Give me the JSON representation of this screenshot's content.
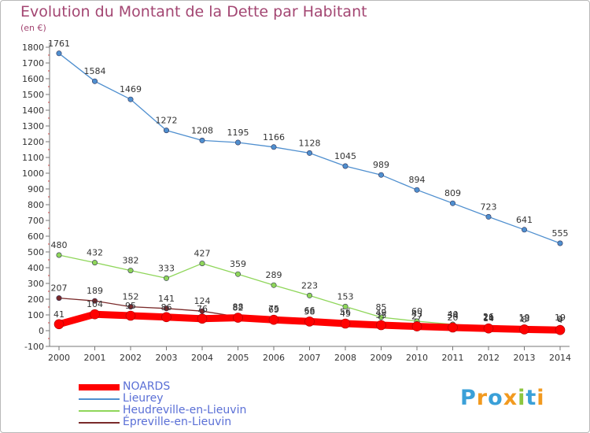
{
  "chart_data": {
    "type": "line",
    "title": "Evolution du Montant de la Dette par Habitant",
    "subtitle": "(en €)",
    "x": [
      "2000",
      "2001",
      "2002",
      "2003",
      "2004",
      "2005",
      "2006",
      "2007",
      "2008",
      "2009",
      "2010",
      "2011",
      "2012",
      "2013",
      "2014"
    ],
    "ylim": [
      -100,
      1800
    ],
    "yticks": [
      -100,
      0,
      100,
      200,
      300,
      400,
      500,
      600,
      700,
      800,
      900,
      1000,
      1100,
      1200,
      1300,
      1400,
      1500,
      1600,
      1700,
      1800
    ],
    "grid": false,
    "legend_placement": "bottom-left",
    "series": [
      {
        "name": "NOARDS",
        "color": "#ff0000",
        "values": [
          41,
          104,
          95,
          86,
          76,
          82,
          69,
          58,
          45,
          35,
          27,
          20,
          14,
          8,
          4
        ],
        "labels": true
      },
      {
        "name": "Lieurey",
        "color": "#4f8fcf",
        "values": [
          1761,
          1584,
          1469,
          1272,
          1208,
          1195,
          1166,
          1128,
          1045,
          989,
          894,
          809,
          723,
          641,
          555
        ],
        "labels": true
      },
      {
        "name": "Heudreville-en-Lieuvin",
        "color": "#8fd65a",
        "values": [
          480,
          432,
          382,
          333,
          427,
          359,
          289,
          223,
          153,
          85,
          60,
          40,
          26,
          19,
          19
        ],
        "labels": true
      },
      {
        "name": "Épreville-en-Lieuvin",
        "color": "#7a2a2a",
        "values": [
          207,
          189,
          152,
          141,
          124,
          88,
          75,
          66,
          56,
          49,
          43,
          34,
          21,
          13,
          9
        ],
        "labels": true
      }
    ]
  },
  "legend": {
    "items": [
      "NOARDS",
      "Lieurey",
      "Heudreville-en-Lieuvin",
      "Épreville-en-Lieuvin"
    ]
  },
  "brand": {
    "letters": [
      "P",
      "r",
      "o",
      "x",
      "i",
      "t",
      "i"
    ],
    "colors": [
      "#3aa0d8",
      "#f29a1f",
      "#3aa0d8",
      "#f29a1f",
      "#8cc63f",
      "#3aa0d8",
      "#f29a1f"
    ]
  }
}
